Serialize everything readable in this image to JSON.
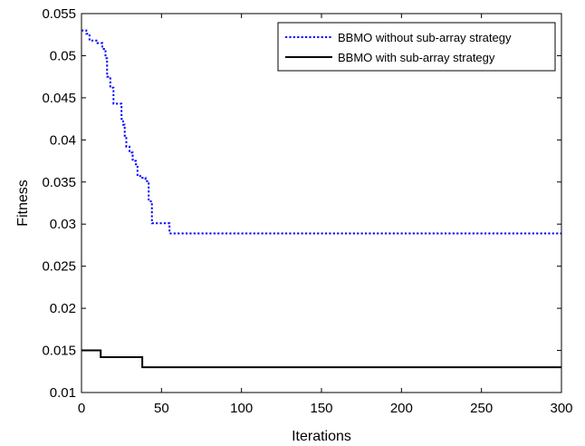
{
  "chart_data": {
    "type": "line",
    "title": "",
    "xlabel": "Iterations",
    "ylabel": "Fitness",
    "xlim": [
      0,
      300
    ],
    "ylim": [
      0.01,
      0.055
    ],
    "x_ticks": [
      "0",
      "50",
      "100",
      "150",
      "200",
      "250",
      "300"
    ],
    "y_ticks": [
      "0.01",
      "0.015",
      "0.02",
      "0.025",
      "0.03",
      "0.035",
      "0.04",
      "0.045",
      "0.05",
      "0.055"
    ],
    "grid": false,
    "legend_position": "top-right",
    "series": [
      {
        "name": "BBMO without sub-array strategy",
        "color": "#0000ff",
        "style": "dotted",
        "step": true,
        "points": [
          [
            0,
            0.053
          ],
          [
            3,
            0.0526
          ],
          [
            5,
            0.0518
          ],
          [
            10,
            0.0515
          ],
          [
            13,
            0.0508
          ],
          [
            15,
            0.0497
          ],
          [
            16,
            0.0475
          ],
          [
            18,
            0.0462
          ],
          [
            20,
            0.0443
          ],
          [
            25,
            0.0425
          ],
          [
            26,
            0.0418
          ],
          [
            27,
            0.0405
          ],
          [
            28,
            0.0392
          ],
          [
            30,
            0.0385
          ],
          [
            32,
            0.0375
          ],
          [
            34,
            0.0371
          ],
          [
            35,
            0.0357
          ],
          [
            38,
            0.0355
          ],
          [
            40,
            0.0351
          ],
          [
            42,
            0.0327
          ],
          [
            44,
            0.0301
          ],
          [
            55,
            0.0289
          ],
          [
            300,
            0.0289
          ]
        ]
      },
      {
        "name": "BBMO with sub-array strategy",
        "color": "#000000",
        "style": "solid",
        "step": true,
        "points": [
          [
            0,
            0.015
          ],
          [
            12,
            0.0142
          ],
          [
            38,
            0.013
          ],
          [
            300,
            0.013
          ]
        ]
      }
    ]
  }
}
